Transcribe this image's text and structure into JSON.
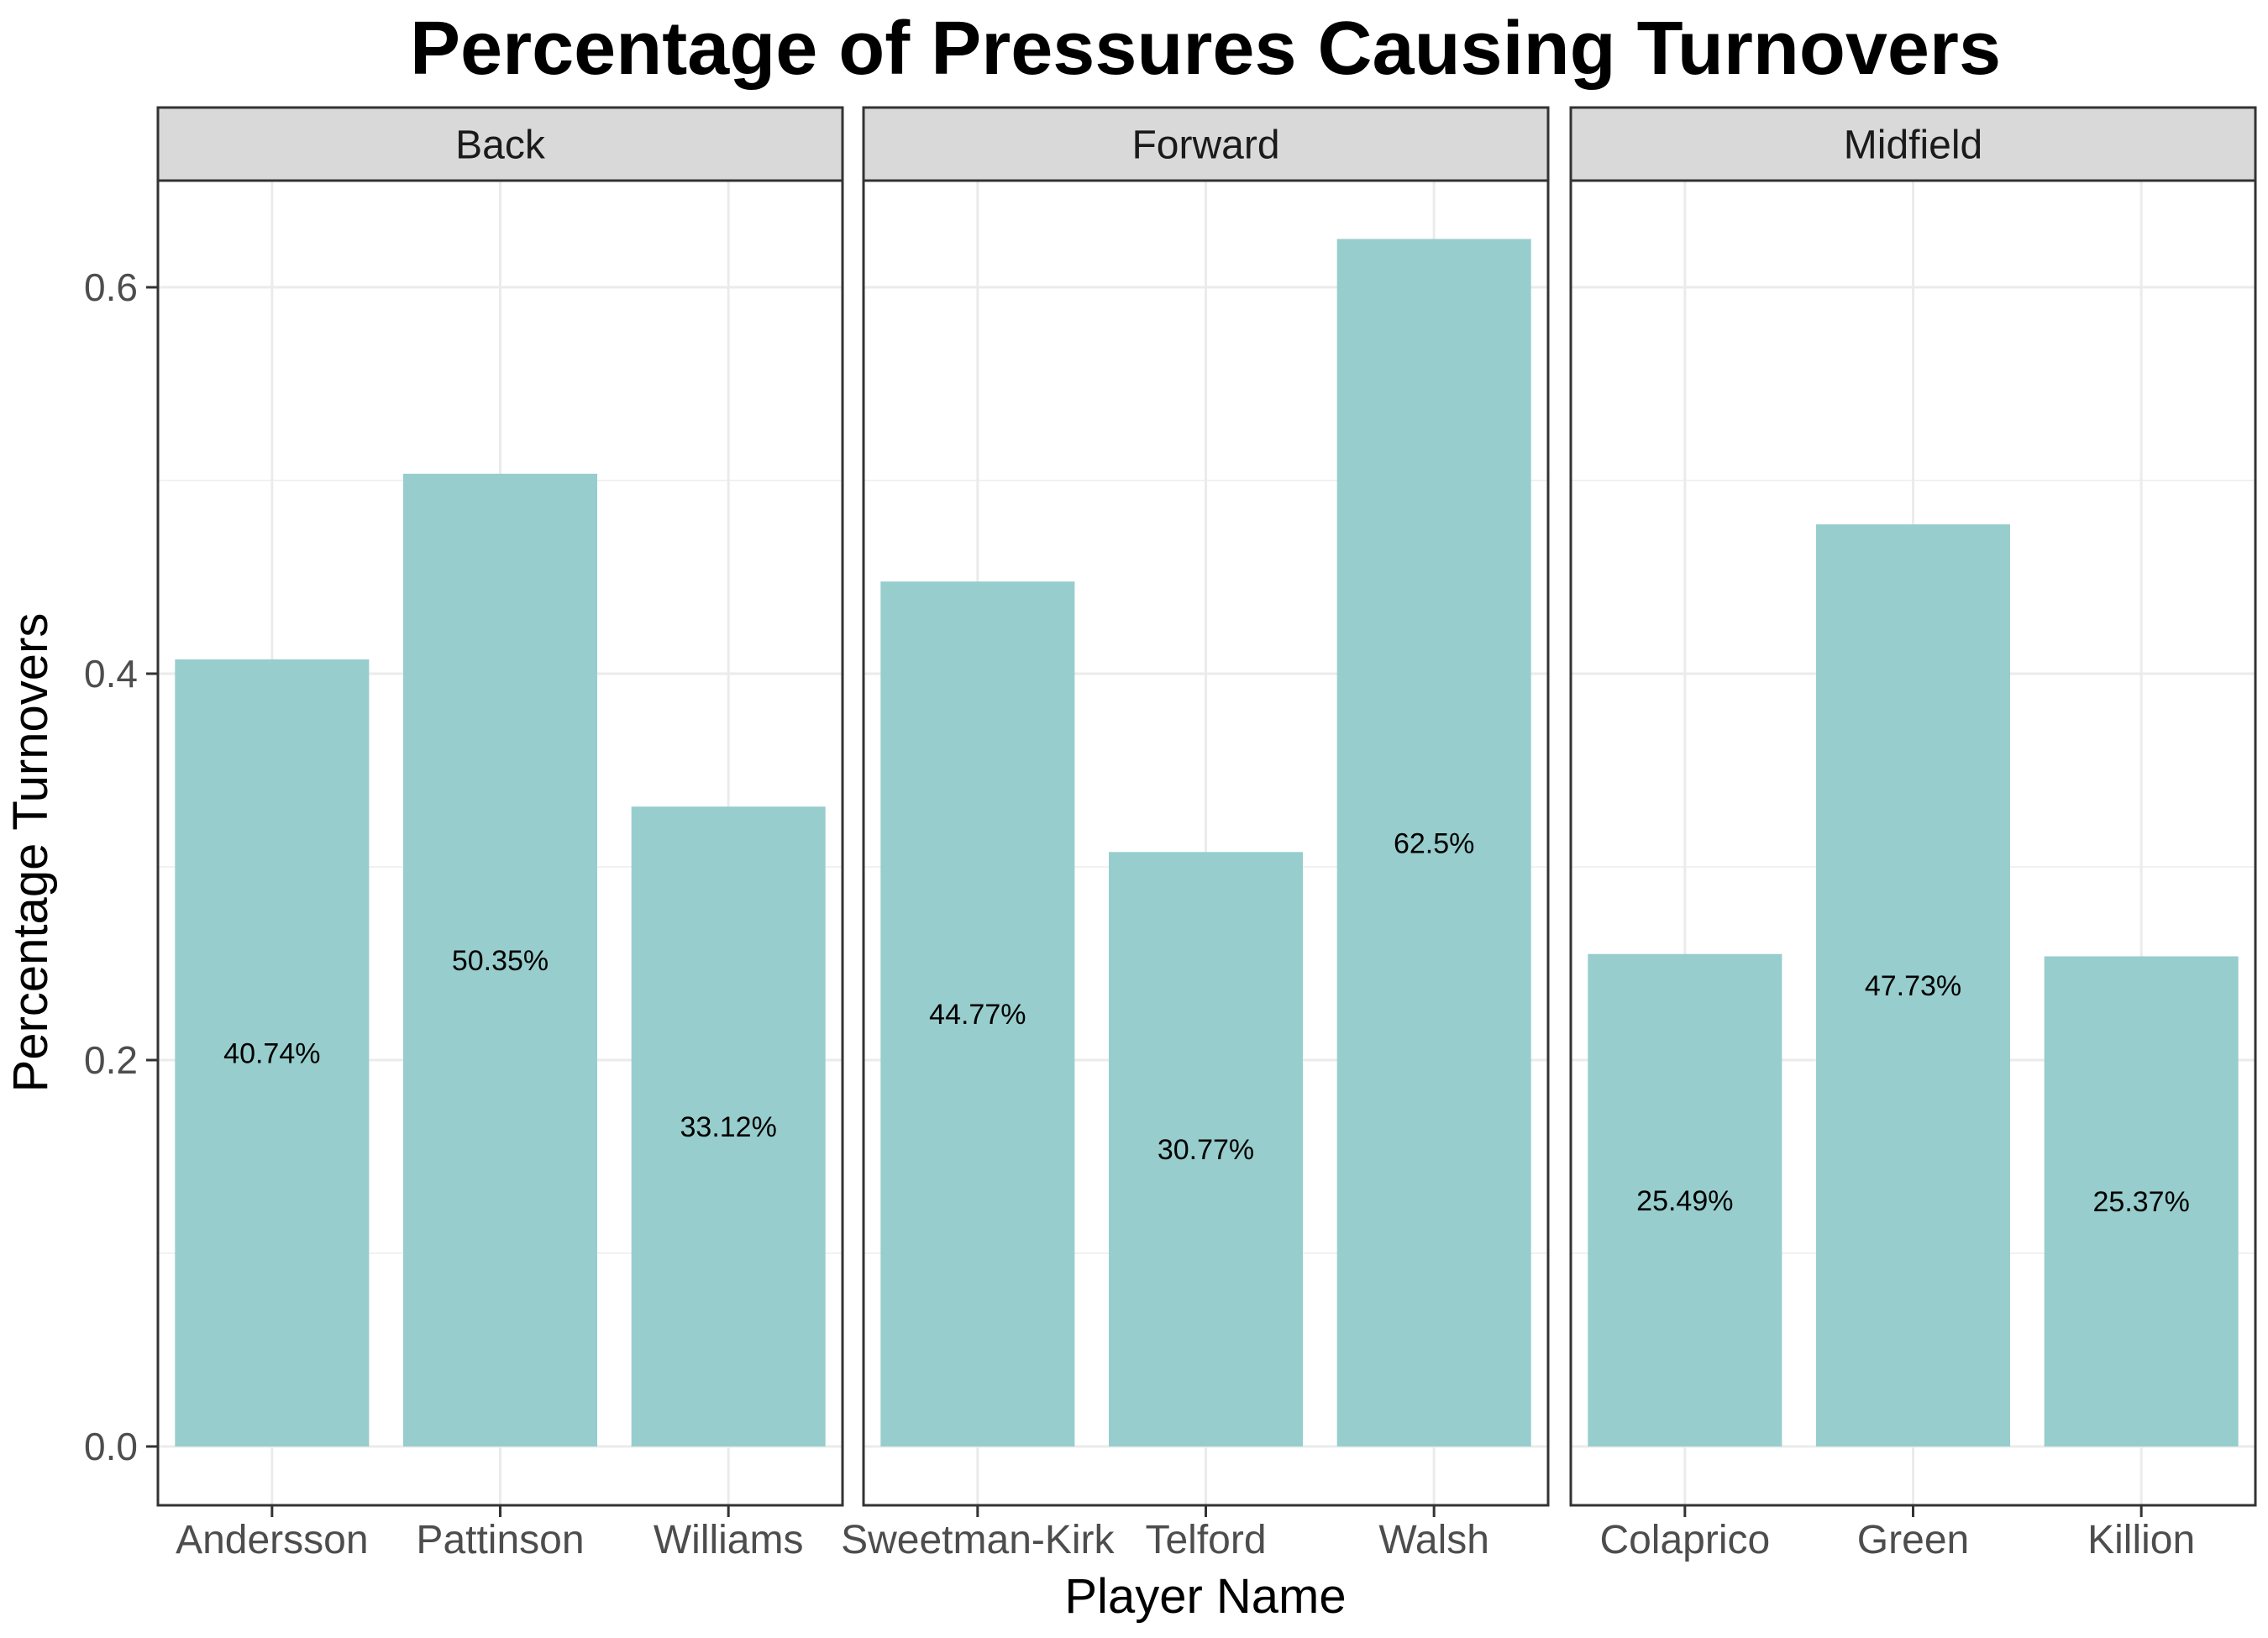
{
  "chart_data": {
    "type": "bar",
    "title": "Percentage of Pressures Causing Turnovers",
    "xlabel": "Player Name",
    "ylabel": "Percentage Turnovers",
    "ylim": [
      0,
      0.66
    ],
    "yticks": [
      "0.0",
      "0.2",
      "0.4",
      "0.6"
    ],
    "grid": true,
    "bar_color": "#97cdcd",
    "panels": [
      {
        "label": "Back",
        "bars": [
          {
            "name": "Andersson",
            "value": 0.4074,
            "label": "40.74%"
          },
          {
            "name": "Pattinson",
            "value": 0.5035,
            "label": "50.35%"
          },
          {
            "name": "Williams",
            "value": 0.3312,
            "label": "33.12%"
          }
        ]
      },
      {
        "label": "Forward",
        "bars": [
          {
            "name": "Sweetman-Kirk",
            "value": 0.4477,
            "label": "44.77%"
          },
          {
            "name": "Telford",
            "value": 0.3077,
            "label": "30.77%"
          },
          {
            "name": "Walsh",
            "value": 0.625,
            "label": "62.5%"
          }
        ]
      },
      {
        "label": "Midfield",
        "bars": [
          {
            "name": "Colaprico",
            "value": 0.2549,
            "label": "25.49%"
          },
          {
            "name": "Green",
            "value": 0.4773,
            "label": "47.73%"
          },
          {
            "name": "Killion",
            "value": 0.2537,
            "label": "25.37%"
          }
        ]
      }
    ]
  }
}
